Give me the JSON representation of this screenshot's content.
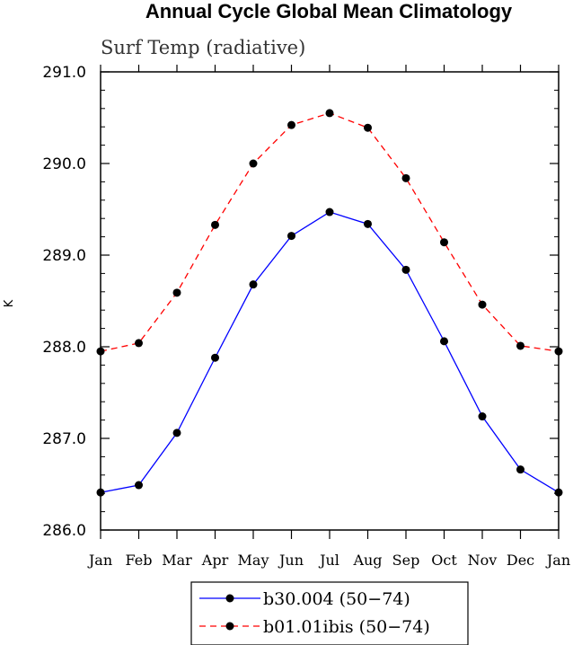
{
  "chart_data": {
    "type": "line",
    "title": "Annual Cycle Global Mean Climatology",
    "subtitle": "Surf Temp (radiative)",
    "xlabel": "",
    "ylabel": "K",
    "categories": [
      "Jan",
      "Feb",
      "Mar",
      "Apr",
      "May",
      "Jun",
      "Jul",
      "Aug",
      "Sep",
      "Oct",
      "Nov",
      "Dec",
      "Jan"
    ],
    "ylim": [
      286.0,
      291.0
    ],
    "yticks": [
      "286.0",
      "287.0",
      "288.0",
      "289.0",
      "290.0",
      "291.0"
    ],
    "grid": false,
    "legend_position": "bottom",
    "series": [
      {
        "name": "b30.004 (50−74)",
        "color": "#0000ff",
        "dash": "solid",
        "values": [
          286.41,
          286.49,
          287.06,
          287.88,
          288.68,
          289.21,
          289.47,
          289.34,
          288.84,
          288.06,
          287.24,
          286.66,
          286.41
        ]
      },
      {
        "name": "b01.01ibis (50−74)",
        "color": "#ff0000",
        "dash": "dashed",
        "values": [
          287.95,
          288.04,
          288.59,
          289.33,
          290.0,
          290.42,
          290.55,
          290.39,
          289.84,
          289.14,
          288.46,
          288.01,
          287.95
        ]
      }
    ]
  }
}
